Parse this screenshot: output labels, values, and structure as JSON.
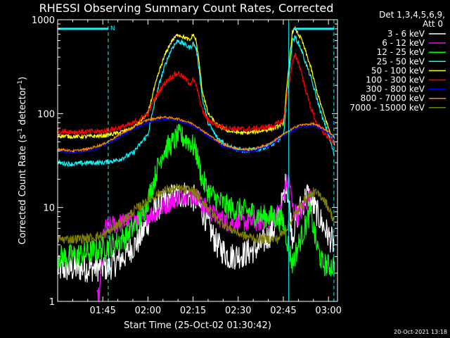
{
  "chart_data": {
    "type": "line",
    "title": "RHESSI Observing Summary Count Rates, Corrected",
    "xlabel": "Start Time (25-Oct-02 01:30:42)",
    "ylabel_main": "Corrected Count Rate (s",
    "ylabel_sup1": "-1",
    "ylabel_mid": " detector",
    "ylabel_sup2": "-1",
    "ylabel_end": ")",
    "yscale": "log",
    "ylim": [
      1,
      1000
    ],
    "xlim": [
      0,
      93
    ],
    "x_unit": "minutes after 01:30",
    "x_ticks": [
      {
        "x": 15,
        "label": "01:45"
      },
      {
        "x": 30,
        "label": "02:00"
      },
      {
        "x": 45,
        "label": "02:15"
      },
      {
        "x": 60,
        "label": "02:30"
      },
      {
        "x": 75,
        "label": "02:45"
      },
      {
        "x": 90,
        "label": "03:00"
      }
    ],
    "y_ticks": [
      {
        "y": 1,
        "label": "1"
      },
      {
        "y": 10,
        "label": "10"
      },
      {
        "y": 100,
        "label": "100"
      },
      {
        "y": 1000,
        "label": "1000"
      }
    ],
    "legend_header": "Det 1,3,4,5,6,9,",
    "legend_att": "Att 0",
    "legend_placement": "right",
    "background": "#000000",
    "series": [
      {
        "name": "3 - 6 keV",
        "color": "#ffffff",
        "x": [
          0,
          17,
          22,
          27,
          30,
          33,
          38,
          43,
          46,
          49,
          51,
          53,
          57,
          62,
          67,
          72,
          75,
          76,
          78,
          80,
          83,
          86,
          90,
          92
        ],
        "y": [
          2.2,
          2.3,
          3,
          4.5,
          7,
          10,
          13,
          14,
          12,
          8,
          5.5,
          4,
          3,
          3.2,
          3.8,
          6,
          12,
          20,
          5,
          9,
          14,
          9,
          5,
          4
        ]
      },
      {
        "name": "6 - 12 keV",
        "color": "#ff00ff",
        "x": [
          13,
          14,
          15,
          16,
          18,
          22,
          27,
          33,
          38,
          43,
          46,
          49,
          53,
          57,
          62,
          67,
          71,
          74,
          76,
          77,
          78,
          80,
          82,
          84
        ],
        "y": [
          1,
          1.2,
          5,
          6,
          6.5,
          7,
          7.5,
          9,
          12,
          14,
          13,
          10,
          8,
          7,
          7,
          7,
          7.5,
          9,
          18,
          20,
          10,
          8,
          11,
          13
        ]
      },
      {
        "name": "12 - 25 keV",
        "color": "#00ff00",
        "x": [
          0,
          3,
          8,
          13,
          18,
          23,
          28,
          31,
          33,
          35,
          38,
          40,
          42,
          44,
          46,
          48,
          50,
          53,
          57,
          60,
          64,
          68,
          72,
          75,
          78,
          80,
          82,
          84,
          86,
          88,
          90,
          92
        ],
        "y": [
          3,
          3,
          3.2,
          3.5,
          4,
          5,
          8,
          15,
          25,
          40,
          48,
          58,
          55,
          50,
          40,
          20,
          15,
          12,
          10,
          9.5,
          9,
          8,
          8,
          7,
          2.5,
          4,
          6,
          9,
          4,
          2.5,
          2.4,
          2.4
        ]
      },
      {
        "name": "25 - 50 keV",
        "color": "#00ffff",
        "x": [
          0,
          5,
          10,
          15,
          20,
          25,
          30,
          32,
          34,
          36,
          38,
          40,
          42,
          44,
          45,
          46,
          47,
          48,
          50,
          53,
          57,
          62,
          67,
          72,
          75,
          78,
          79,
          80,
          81,
          82,
          84,
          86,
          88,
          90,
          92
        ],
        "y": [
          30,
          29,
          30,
          30,
          32,
          38,
          60,
          120,
          220,
          350,
          500,
          600,
          550,
          500,
          560,
          500,
          300,
          150,
          80,
          55,
          45,
          40,
          42,
          48,
          58,
          600,
          650,
          560,
          480,
          380,
          250,
          150,
          90,
          60,
          35
        ]
      },
      {
        "name": "50 - 100 keV",
        "color": "#ffff00",
        "x": [
          0,
          5,
          10,
          15,
          20,
          25,
          30,
          32,
          34,
          36,
          38,
          40,
          42,
          44,
          45,
          46,
          47,
          48,
          50,
          53,
          57,
          62,
          67,
          72,
          75,
          78,
          79,
          80,
          81,
          82,
          84,
          86,
          88,
          90,
          92
        ],
        "y": [
          58,
          57,
          57,
          58,
          62,
          70,
          100,
          180,
          300,
          450,
          600,
          700,
          650,
          600,
          700,
          600,
          350,
          180,
          100,
          75,
          65,
          62,
          65,
          70,
          78,
          750,
          800,
          700,
          620,
          500,
          320,
          180,
          110,
          70,
          48
        ]
      },
      {
        "name": "100 - 300 keV",
        "color": "#ff0000",
        "x": [
          0,
          5,
          10,
          15,
          20,
          25,
          30,
          32,
          34,
          36,
          38,
          40,
          42,
          44,
          45,
          46,
          47,
          48,
          50,
          53,
          57,
          62,
          67,
          72,
          75,
          78,
          79,
          80,
          81,
          82,
          84,
          86,
          88,
          90,
          92
        ],
        "y": [
          65,
          64,
          64,
          65,
          70,
          78,
          100,
          140,
          180,
          220,
          250,
          270,
          240,
          210,
          230,
          200,
          150,
          110,
          85,
          75,
          70,
          68,
          70,
          75,
          85,
          350,
          420,
          350,
          280,
          200,
          120,
          80,
          65,
          55,
          48
        ]
      },
      {
        "name": "300 - 800 keV",
        "color": "#0000ff",
        "x": [
          0,
          5,
          10,
          15,
          20,
          25,
          30,
          35,
          40,
          45,
          50,
          55,
          60,
          65,
          70,
          75,
          80,
          85,
          90,
          92
        ],
        "y": [
          40,
          38,
          40,
          45,
          55,
          68,
          80,
          87,
          85,
          75,
          58,
          45,
          40,
          40,
          45,
          58,
          72,
          75,
          62,
          52
        ]
      },
      {
        "name": "800 - 7000 keV",
        "color": "#ff8800",
        "x": [
          0,
          5,
          10,
          15,
          20,
          25,
          30,
          35,
          40,
          45,
          50,
          55,
          60,
          65,
          70,
          75,
          80,
          85,
          90,
          92
        ],
        "y": [
          42,
          40,
          42,
          47,
          58,
          72,
          86,
          92,
          88,
          78,
          60,
          47,
          42,
          42,
          47,
          60,
          75,
          78,
          65,
          55
        ]
      },
      {
        "name": "7000 - 15000 keV",
        "color": "#808000",
        "x": [
          0,
          5,
          10,
          15,
          20,
          25,
          30,
          35,
          40,
          45,
          50,
          53,
          57,
          62,
          67,
          70,
          73,
          76,
          79,
          82,
          85,
          88,
          90,
          92
        ],
        "y": [
          4.6,
          4.6,
          4.7,
          5,
          6.5,
          9,
          12,
          15,
          16,
          15,
          10,
          7.5,
          6,
          5,
          4.6,
          4.6,
          4.6,
          6,
          8.5,
          12,
          14.5,
          13,
          10,
          7
        ]
      }
    ],
    "vlines": [
      {
        "x": 0,
        "color": "#00ffff",
        "style": "solid"
      },
      {
        "x": 16.8,
        "color": "#00ffff",
        "style": "dashed"
      },
      {
        "x": 76.8,
        "color": "#00ffff",
        "style": "solid"
      },
      {
        "x": 91.8,
        "color": "#00ffff",
        "style": "dashed"
      }
    ],
    "top_bars": [
      {
        "x0": 0,
        "x1": 16.8,
        "y": 800,
        "color": "#00ffff"
      },
      {
        "x0": 78.5,
        "x1": 91.8,
        "y": 800,
        "color": "#00ffff"
      }
    ],
    "night_marker": {
      "label": "N",
      "x": 17.5,
      "y": 800,
      "color": "#00ffff"
    },
    "footer_timestamp": "20-Oct-2021 13:18"
  }
}
